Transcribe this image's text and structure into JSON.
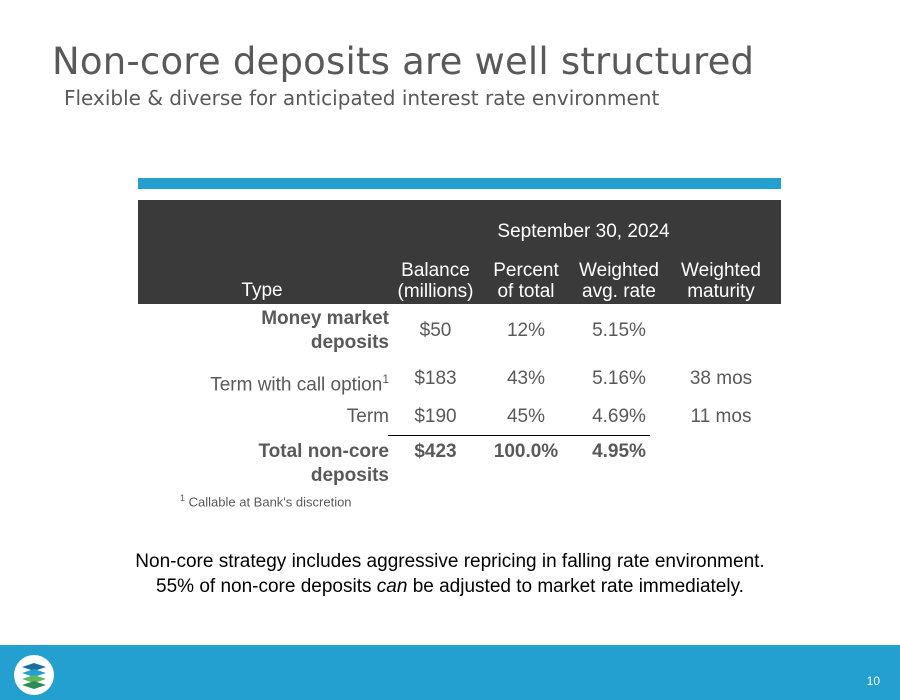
{
  "slide": {
    "title": "Non-core deposits are well structured",
    "subtitle": "Flexible & diverse for anticipated interest rate environment",
    "page_number": "10"
  },
  "table": {
    "period": "September 30, 2024",
    "headers": {
      "type": "Type",
      "balance": [
        "Balance",
        "(millions)"
      ],
      "percent": [
        "Percent",
        "of total"
      ],
      "rate": [
        "Weighted",
        "avg. rate"
      ],
      "maturity": [
        "Weighted",
        "maturity"
      ]
    },
    "rows": [
      {
        "type": [
          "Money market",
          "deposits"
        ],
        "balance": "$50",
        "percent": "12%",
        "rate": "5.15%",
        "maturity": ""
      },
      {
        "type": "Term with call option",
        "sup": "1",
        "balance": "$183",
        "percent": "43%",
        "rate": "5.16%",
        "maturity": "38 mos"
      },
      {
        "type": "Term",
        "balance": "$190",
        "percent": "45%",
        "rate": "4.69%",
        "maturity": "11 mos"
      },
      {
        "type": [
          "Total non-core",
          "deposits"
        ],
        "balance": "$423",
        "percent": "100.0%",
        "rate": "4.95%",
        "maturity": ""
      }
    ],
    "footnote": {
      "marker": "1",
      "text": "Callable at Bank's discretion"
    }
  },
  "note": {
    "line1": "Non-core strategy includes aggressive repricing in falling rate environment.",
    "line2_before": "55% of non-core deposits ",
    "line2_em": "can",
    "line2_after": " be adjusted to market rate immediately."
  },
  "colors": {
    "accent": "#23a0d0",
    "header_bg": "#3a3a3a",
    "text": "#595959"
  },
  "icons": {
    "logo": "layered-waves-logo-icon"
  }
}
